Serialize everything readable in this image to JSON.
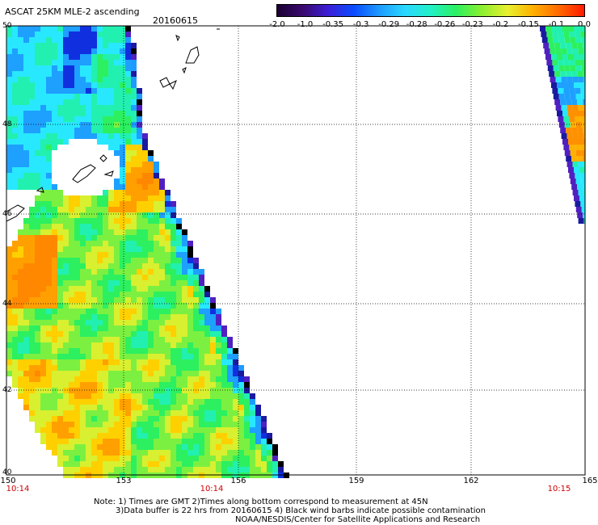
{
  "header": {
    "title": "ASCAT 25KM MLE-2 ascending",
    "date": "20160615"
  },
  "colorbar": {
    "labels": [
      "-2.0",
      "-1.0",
      "-0.35",
      "-0.3",
      "-0.29",
      "-0.28",
      "-0.26",
      "-0.23",
      "-0.2",
      "-0.15",
      "-0.1",
      "0.0"
    ],
    "colors": [
      "#1a0033",
      "#3a0a6e",
      "#3b1fd6",
      "#0a4cff",
      "#1e9bff",
      "#2ad8ff",
      "#22f0c8",
      "#2cf060",
      "#8cf030",
      "#e8f030",
      "#ffb000",
      "#ff6a00",
      "#ff1a00"
    ]
  },
  "axes": {
    "lat_labels": [
      "50",
      "48",
      "46",
      "44",
      "42",
      "40"
    ],
    "lon_labels": [
      "150",
      "153",
      "156",
      "159",
      "162",
      "165"
    ],
    "time_labels": [
      "10:14",
      "10:14",
      "10:15"
    ]
  },
  "notes": [
    "Note: 1) Times are GMT 2)Times along bottom correspond to measurement at 45N",
    "3)Data buffer is 22 hrs from 20160615 4) Black wind barbs indicate possible contamination",
    "NOAA/NESDIS/Center for Satellite Applications and Research"
  ]
}
